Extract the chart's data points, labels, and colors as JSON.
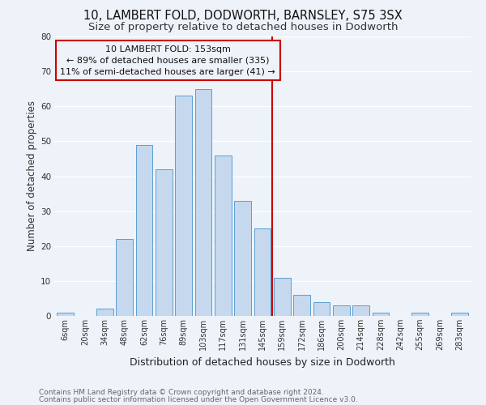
{
  "title": "10, LAMBERT FOLD, DODWORTH, BARNSLEY, S75 3SX",
  "subtitle": "Size of property relative to detached houses in Dodworth",
  "xlabel": "Distribution of detached houses by size in Dodworth",
  "ylabel": "Number of detached properties",
  "categories": [
    "6sqm",
    "20sqm",
    "34sqm",
    "48sqm",
    "62sqm",
    "76sqm",
    "89sqm",
    "103sqm",
    "117sqm",
    "131sqm",
    "145sqm",
    "159sqm",
    "172sqm",
    "186sqm",
    "200sqm",
    "214sqm",
    "228sqm",
    "242sqm",
    "255sqm",
    "269sqm",
    "283sqm"
  ],
  "values": [
    1,
    0,
    2,
    22,
    49,
    42,
    63,
    65,
    46,
    33,
    25,
    11,
    6,
    4,
    3,
    3,
    1,
    0,
    1,
    0,
    1
  ],
  "bar_color": "#c5d8ed",
  "bar_edge_color": "#5a9fd4",
  "vline_color": "#cc0000",
  "annotation_title": "10 LAMBERT FOLD: 153sqm",
  "annotation_line1": "← 89% of detached houses are smaller (335)",
  "annotation_line2": "11% of semi-detached houses are larger (41) →",
  "annotation_box_color": "#cc0000",
  "ylim": [
    0,
    80
  ],
  "yticks": [
    0,
    10,
    20,
    30,
    40,
    50,
    60,
    70,
    80
  ],
  "background_color": "#eef2f9",
  "grid_color": "#ffffff",
  "footer1": "Contains HM Land Registry data © Crown copyright and database right 2024.",
  "footer2": "Contains public sector information licensed under the Open Government Licence v3.0.",
  "title_fontsize": 10.5,
  "subtitle_fontsize": 9.5,
  "xlabel_fontsize": 9,
  "ylabel_fontsize": 8.5,
  "tick_fontsize": 7,
  "footer_fontsize": 6.5,
  "annotation_fontsize": 8
}
